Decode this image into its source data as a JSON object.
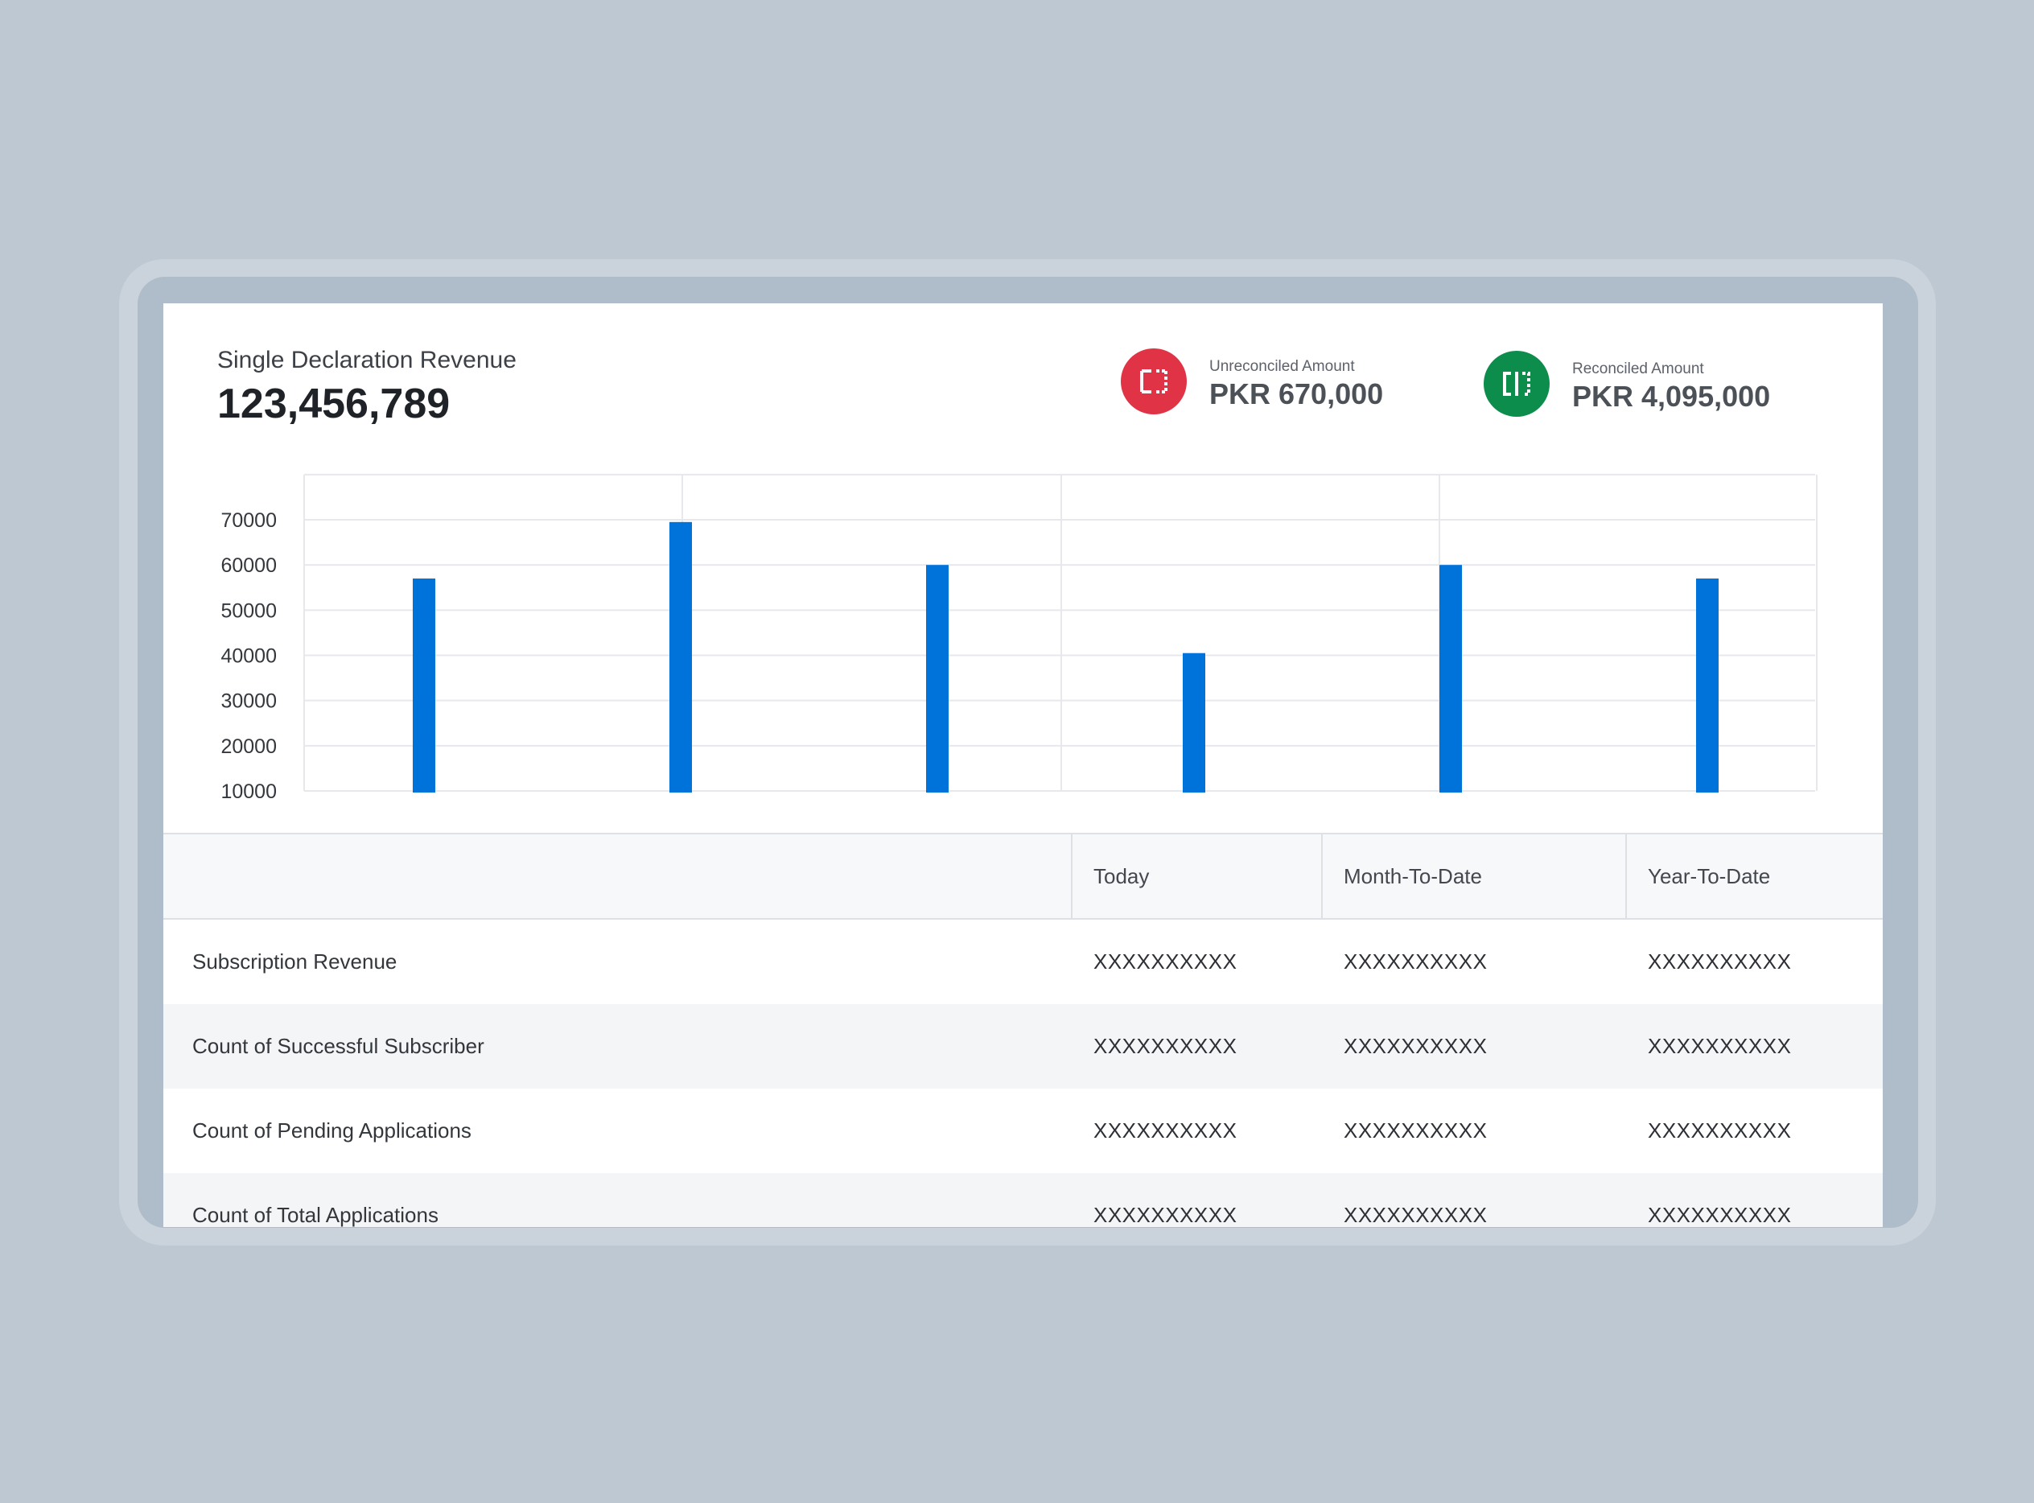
{
  "summary": {
    "title": "Single Declaration Revenue",
    "value": "123,456,789"
  },
  "kpis": [
    {
      "label": "Unreconciled Amount",
      "value": "PKR 670,000",
      "color": "#e03345",
      "icon": "split-frame-icon"
    },
    {
      "label": "Reconciled Amount",
      "value": "PKR 4,095,000",
      "color": "#0d8d4c",
      "icon": "merged-frame-icon"
    }
  ],
  "chart_data": {
    "type": "bar",
    "y_ticks": [
      70000,
      60000,
      50000,
      40000,
      30000,
      20000,
      10000
    ],
    "ylim": [
      10000,
      80000
    ],
    "values": [
      57000,
      69500,
      60000,
      40500,
      60000,
      57000
    ],
    "bar_color": "#0073da",
    "grid": true
  },
  "table": {
    "headers": [
      "",
      "Today",
      "Month-To-Date",
      "Year-To-Date"
    ],
    "rows": [
      {
        "label": "Subscription Revenue",
        "today": "XXXXXXXXXX",
        "mtd": "XXXXXXXXXX",
        "ytd": "XXXXXXXXXX"
      },
      {
        "label": "Count of Successful Subscriber",
        "today": "XXXXXXXXXX",
        "mtd": "XXXXXXXXXX",
        "ytd": "XXXXXXXXXX"
      },
      {
        "label": "Count of Pending Applications",
        "today": "XXXXXXXXXX",
        "mtd": "XXXXXXXXXX",
        "ytd": "XXXXXXXXXX"
      },
      {
        "label": "Count of Total Applications",
        "today": "XXXXXXXXXX",
        "mtd": "XXXXXXXXXX",
        "ytd": "XXXXXXXXXX"
      }
    ]
  }
}
